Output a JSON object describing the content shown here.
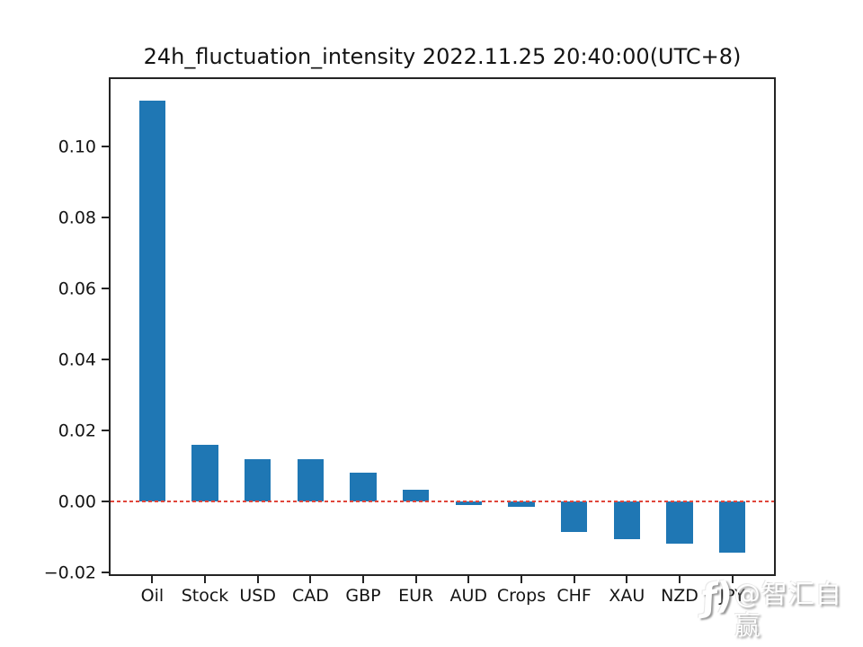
{
  "chart_data": {
    "type": "bar",
    "title": "24h_fluctuation_intensity 2022.11.25 20:40:00(UTC+8)",
    "categories": [
      "Oil",
      "Stock",
      "USD",
      "CAD",
      "GBP",
      "EUR",
      "AUD",
      "Crops",
      "CHF",
      "XAU",
      "NZD",
      "JPY"
    ],
    "values": [
      0.113,
      0.0161,
      0.0121,
      0.0119,
      0.0083,
      0.0033,
      -0.0009,
      -0.0015,
      -0.0086,
      -0.0105,
      -0.0118,
      -0.0143
    ],
    "bar_color": "#1f77b4",
    "xlabel": "",
    "ylabel": "",
    "ylim": [
      -0.0209,
      0.1196
    ],
    "yticks": [
      {
        "value": -0.02,
        "label": "−0.02"
      },
      {
        "value": 0.0,
        "label": "0.00"
      },
      {
        "value": 0.02,
        "label": "0.02"
      },
      {
        "value": 0.04,
        "label": "0.04"
      },
      {
        "value": 0.06,
        "label": "0.06"
      },
      {
        "value": 0.08,
        "label": "0.08"
      },
      {
        "value": 0.1,
        "label": "0.10"
      }
    ],
    "grid": false,
    "legend": null,
    "ref_line": {
      "y": 0.0,
      "color": "#e0463a",
      "style": "dashed"
    }
  },
  "watermark": {
    "icon": "brand-logo-icon",
    "icon_glyph": "ƒ)",
    "text": "@智汇自赢"
  }
}
